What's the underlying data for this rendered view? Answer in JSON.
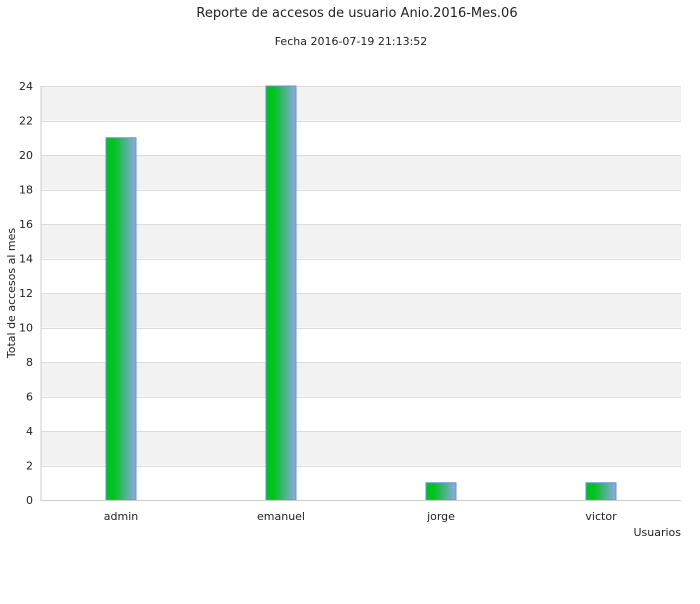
{
  "chart_data": {
    "type": "bar",
    "title": "Reporte de accesos de usuario Anio.2016-Mes.06",
    "subtitle": "Fecha 2016-07-19 21:13:52",
    "xlabel": "Usuarios",
    "ylabel": "Total de accesos al mes",
    "categories": [
      "admin",
      "emanuel",
      "jorge",
      "victor"
    ],
    "values": [
      21,
      24,
      1,
      1
    ],
    "ylim": [
      0,
      24
    ],
    "yticks": [
      "0",
      "2",
      "4",
      "6",
      "8",
      "10",
      "12",
      "14",
      "16",
      "18",
      "20",
      "22",
      "24"
    ],
    "grid": true,
    "legend": "none",
    "colors": {
      "bar_gradient_start": "#00c21c",
      "bar_gradient_end": "#8fa8e8",
      "bar_outline": "#6a8fe0",
      "band_shaded": "#f2f2f2",
      "band_plain": "#ffffff",
      "grid_line": "#dcdcdc",
      "axis_line": "#cccccc"
    }
  }
}
